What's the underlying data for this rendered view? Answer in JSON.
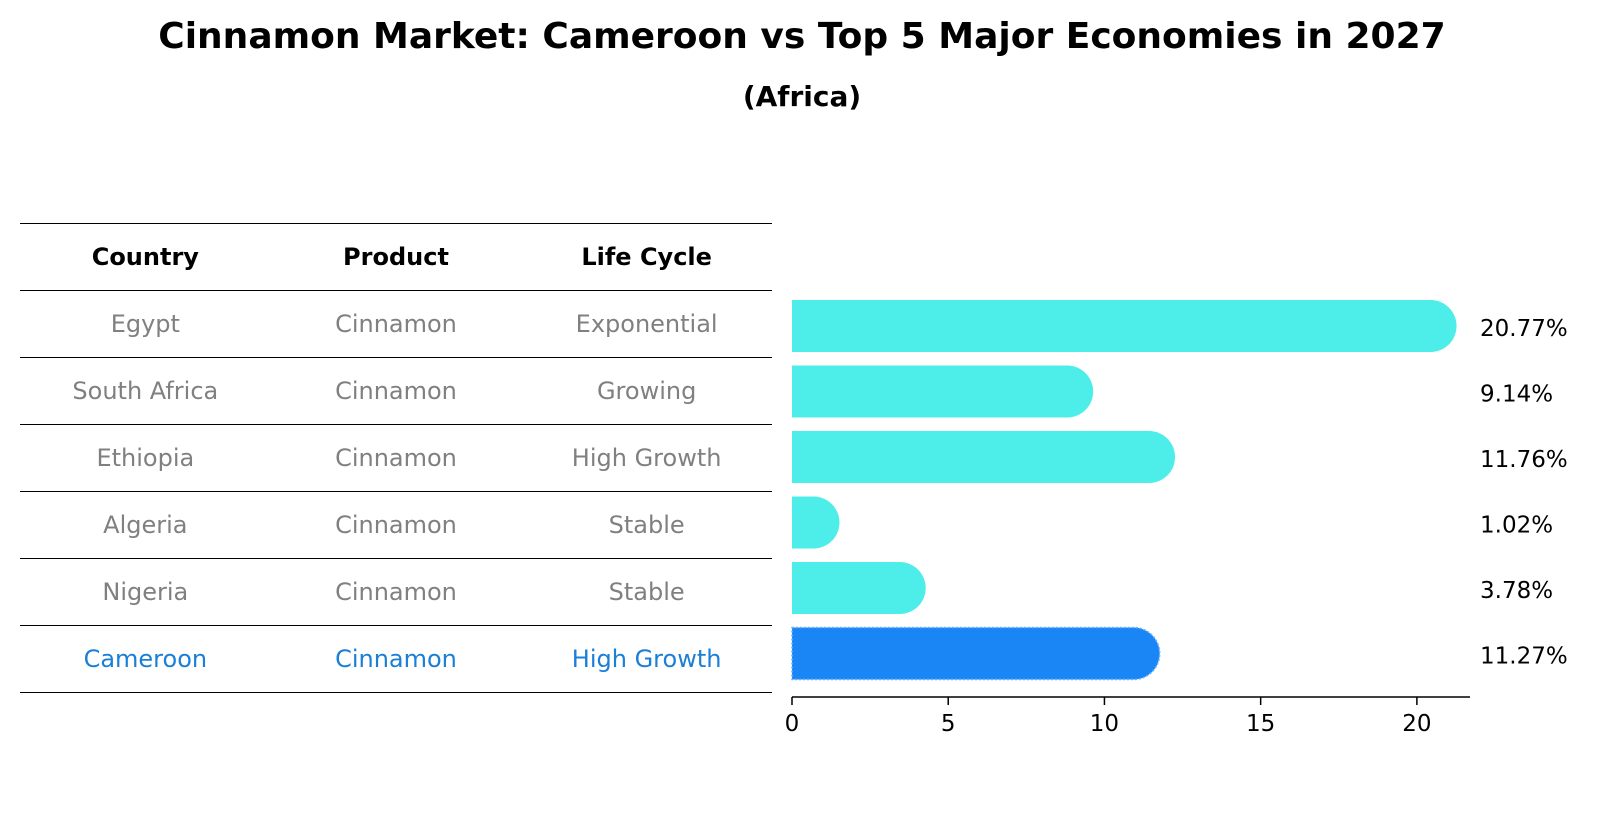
{
  "title": "Cinnamon Market: Cameroon vs Top 5 Major Economies in 2027",
  "subtitle": "(Africa)",
  "table": {
    "headers": [
      "Country",
      "Product",
      "Life Cycle"
    ],
    "rows": [
      {
        "country": "Egypt",
        "product": "Cinnamon",
        "life_cycle": "Exponential"
      },
      {
        "country": "South Africa",
        "product": "Cinnamon",
        "life_cycle": "Growing"
      },
      {
        "country": "Ethiopia",
        "product": "Cinnamon",
        "life_cycle": "High Growth"
      },
      {
        "country": "Algeria",
        "product": "Cinnamon",
        "life_cycle": "Stable"
      },
      {
        "country": "Nigeria",
        "product": "Cinnamon",
        "life_cycle": "Stable"
      },
      {
        "country": "Cameroon",
        "product": "Cinnamon",
        "life_cycle": "High Growth"
      }
    ]
  },
  "colors": {
    "bar": "#4deeea",
    "highlight_bar": "#1a85f5",
    "highlight_text": "#1a7fd6",
    "muted_text": "#808080"
  },
  "chart_data": {
    "type": "bar",
    "orientation": "horizontal",
    "title": "Cinnamon Market: Cameroon vs Top 5 Major Economies in 2027",
    "subtitle": "(Africa)",
    "categories": [
      "Egypt",
      "South Africa",
      "Ethiopia",
      "Algeria",
      "Nigeria",
      "Cameroon"
    ],
    "values": [
      20.77,
      9.14,
      11.76,
      1.02,
      3.78,
      11.27
    ],
    "value_labels": [
      "20.77%",
      "9.14%",
      "11.76%",
      "1.02%",
      "3.78%",
      "11.27%"
    ],
    "highlight": "Cameroon",
    "xlim": [
      0,
      21.7
    ],
    "xticks": [
      0,
      5,
      10,
      15,
      20
    ],
    "xlabel": "",
    "ylabel": "",
    "grid": false
  }
}
